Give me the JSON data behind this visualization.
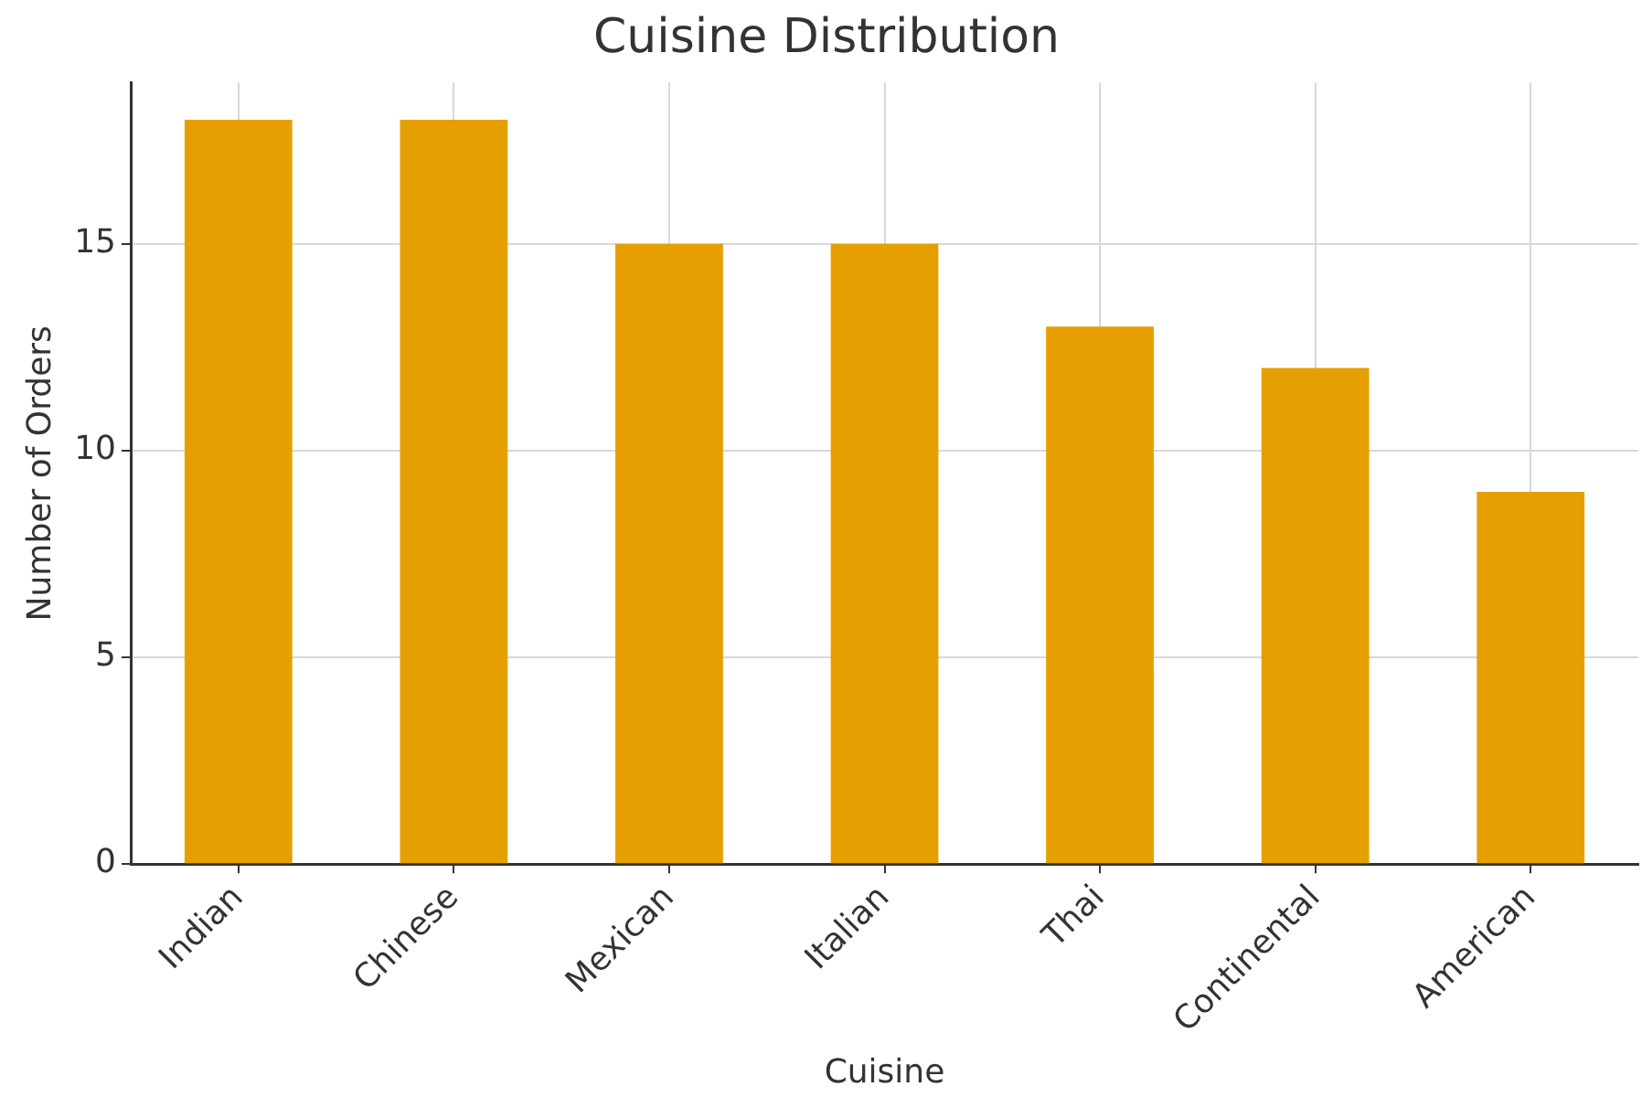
{
  "chart_data": {
    "type": "bar",
    "title": "Cuisine Distribution",
    "xlabel": "Cuisine",
    "ylabel": "Number of Orders",
    "categories": [
      "Indian",
      "Chinese",
      "Mexican",
      "Italian",
      "Thai",
      "Continental",
      "American"
    ],
    "values": [
      18,
      18,
      15,
      15,
      13,
      12,
      9
    ],
    "color": "#e5a000",
    "ylim": [
      0,
      18.9
    ],
    "yticks": [
      0,
      5,
      10,
      15
    ],
    "grid": true
  }
}
